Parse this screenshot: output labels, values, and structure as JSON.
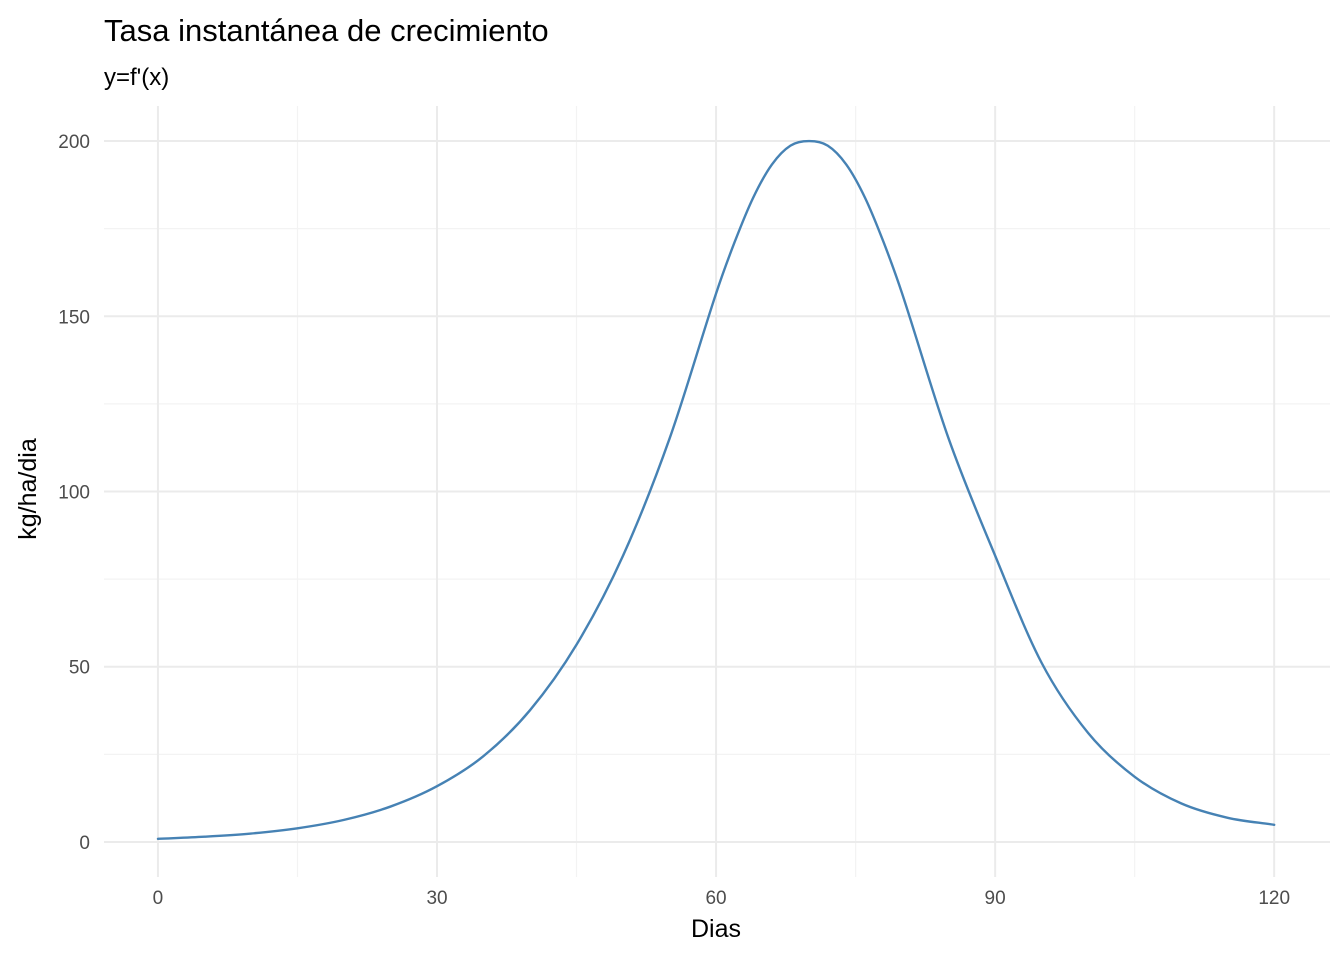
{
  "chart_data": {
    "type": "line",
    "title": "Tasa instantánea de crecimiento",
    "subtitle": "y=f'(x)",
    "xlabel": "Dias",
    "ylabel": "kg/ha/dia",
    "xlim": [
      -5.8,
      126
    ],
    "ylim": [
      -10,
      210
    ],
    "x_ticks": [
      0,
      30,
      60,
      90,
      120
    ],
    "x_tick_labels": [
      "0",
      "30",
      "60",
      "90",
      "120"
    ],
    "x_minor": [
      15,
      45,
      75,
      105
    ],
    "y_ticks": [
      0,
      50,
      100,
      150,
      200
    ],
    "y_tick_labels": [
      "0",
      "50",
      "100",
      "150",
      "200"
    ],
    "y_minor": [
      25,
      75,
      125,
      175
    ],
    "grid": true,
    "legend": "none",
    "line_color": "#4682b4",
    "series": [
      {
        "x": [
          0,
          5,
          10,
          15,
          20,
          25,
          30,
          35,
          40,
          45,
          50,
          55,
          60,
          62,
          64,
          66,
          68,
          70,
          72,
          74,
          76,
          78,
          80,
          85,
          90,
          95,
          100,
          105,
          110,
          115,
          120
        ],
        "y": [
          0.9,
          1.5,
          2.4,
          3.9,
          6.3,
          10.1,
          15.9,
          24.5,
          37.6,
          56.3,
          81.7,
          115.1,
          156.5,
          171.2,
          183.9,
          193.3,
          198.7,
          200,
          198.7,
          193.3,
          183.9,
          171.2,
          156.5,
          115.1,
          81.7,
          51.1,
          31.1,
          18.6,
          11.0,
          6.9,
          4.9
        ]
      }
    ]
  }
}
